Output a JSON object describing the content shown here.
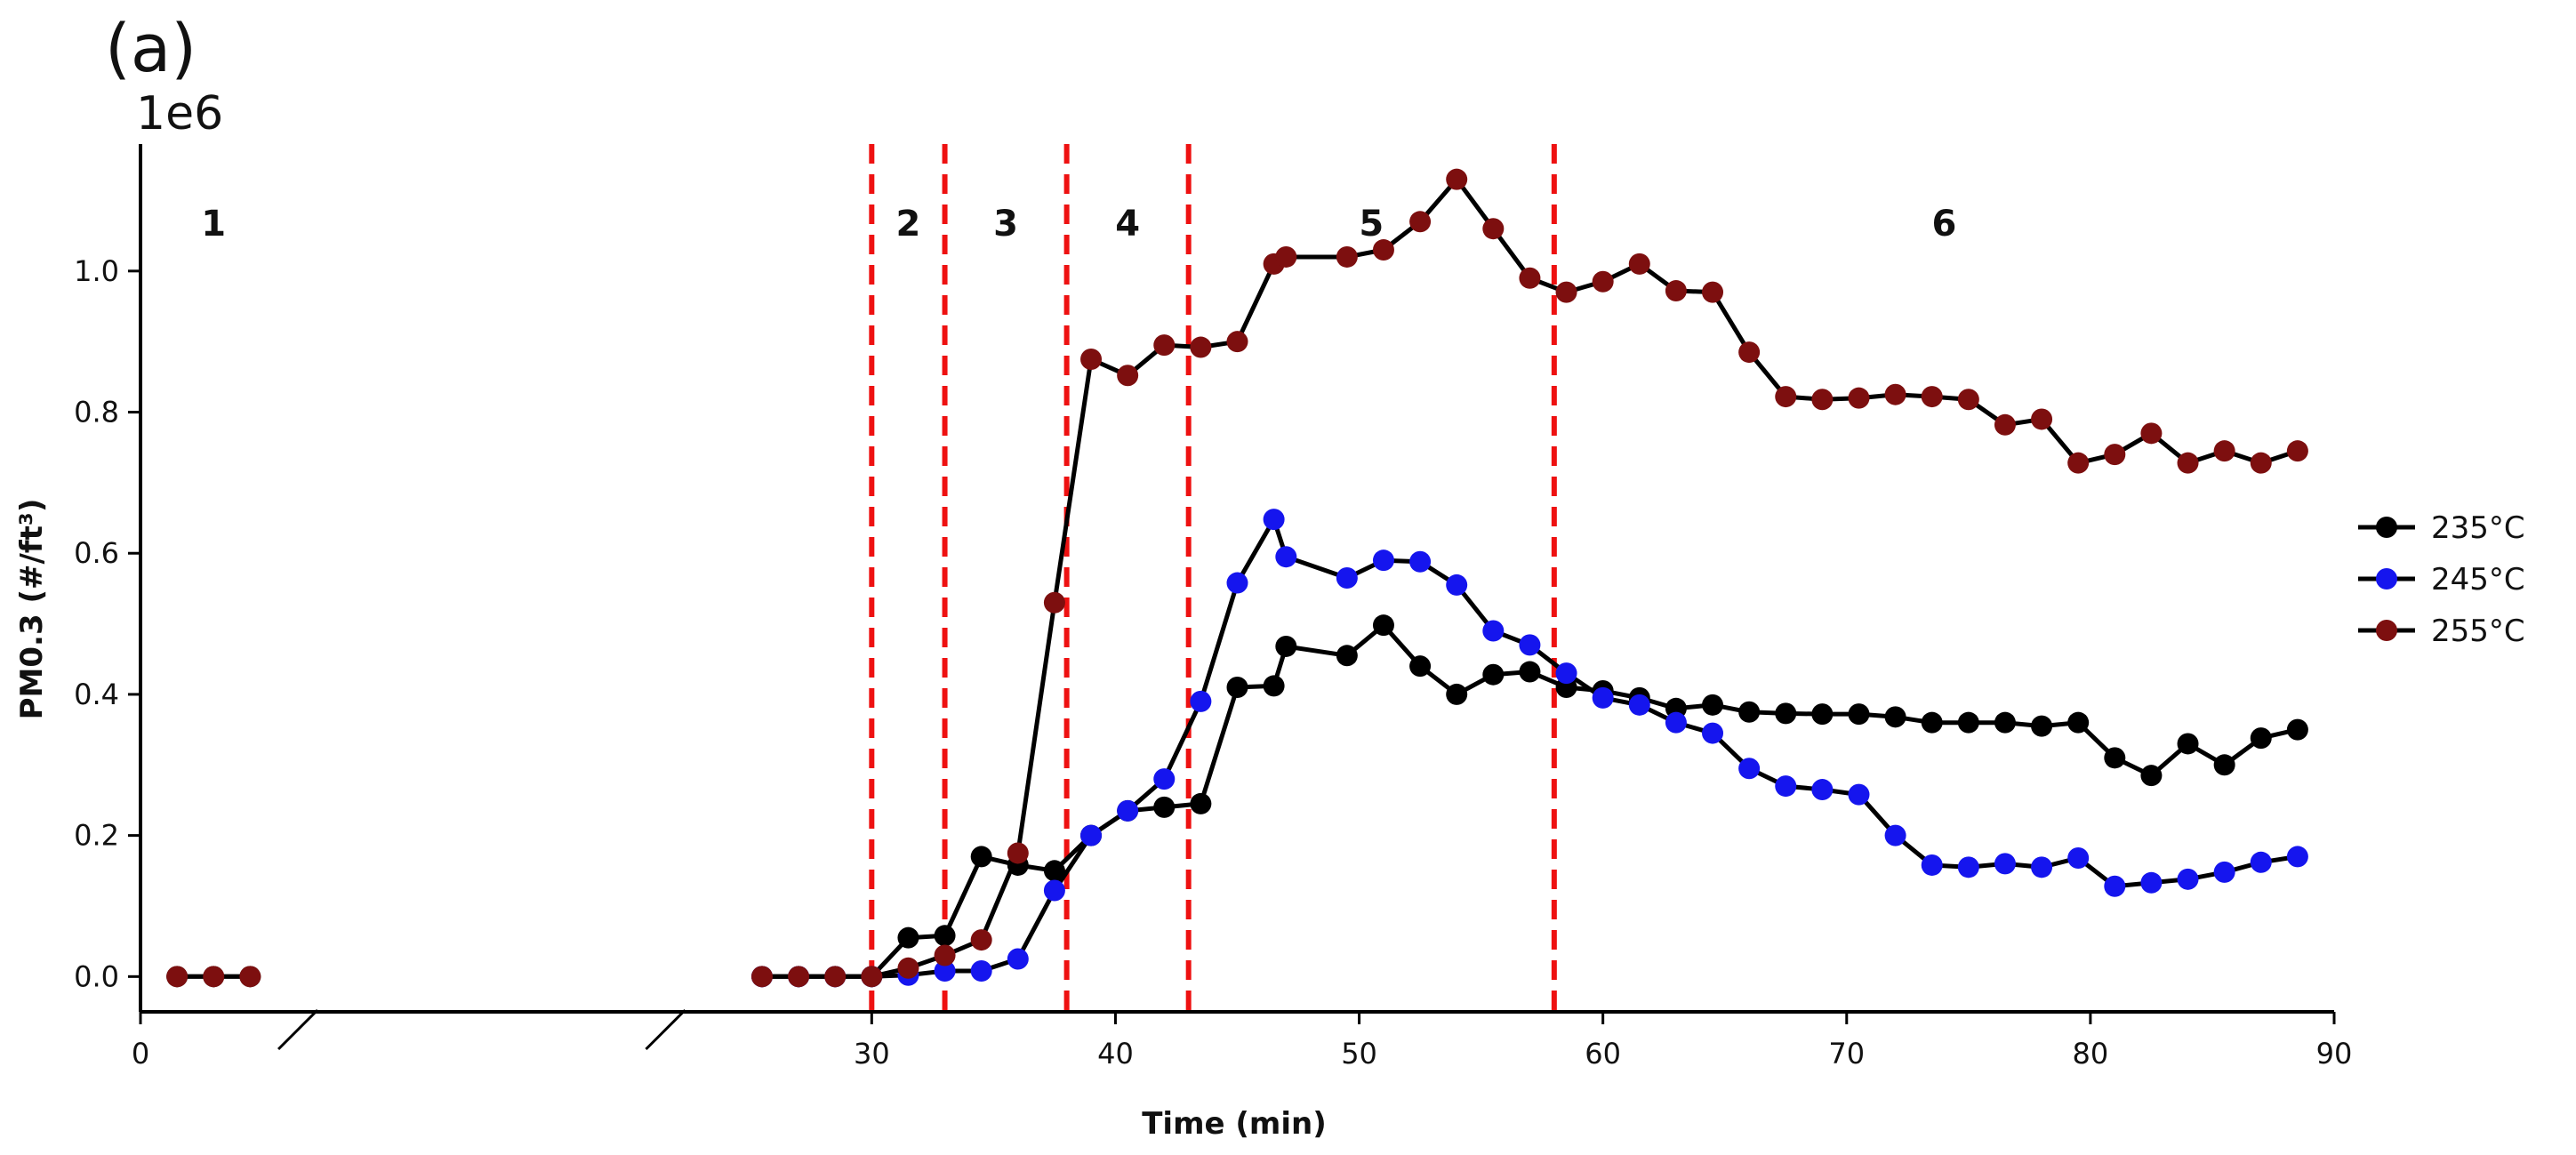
{
  "panel_label": "(a)",
  "chart_data": {
    "type": "line",
    "title": "",
    "xlabel": "Time (min)",
    "ylabel": "PM0.3 (#/ft³)",
    "y_scale_label": "1e6",
    "y_multiplier": 1000000,
    "xlim": [
      0,
      90
    ],
    "ylim": [
      -0.05,
      1.18
    ],
    "x_ticks": [
      0,
      30,
      40,
      50,
      60,
      70,
      80,
      90
    ],
    "x_tick_labels": [
      "0",
      "30",
      "40",
      "50",
      "60",
      "70",
      "80",
      "90"
    ],
    "y_ticks": [
      0.0,
      0.2,
      0.4,
      0.6,
      0.8,
      1.0
    ],
    "y_tick_labels": [
      "0.0",
      "0.2",
      "0.4",
      "0.6",
      "0.8",
      "1.0"
    ],
    "axis_break": {
      "from": 5,
      "to": 23
    },
    "grid": false,
    "legend_position": "right",
    "phase_lines": [
      30,
      33,
      38,
      43,
      58
    ],
    "phase_line_color": "#ee1111",
    "phases": [
      {
        "label": "1",
        "x": 3
      },
      {
        "label": "2",
        "x": 31.5
      },
      {
        "label": "3",
        "x": 35.5
      },
      {
        "label": "4",
        "x": 40.5
      },
      {
        "label": "5",
        "x": 50.5
      },
      {
        "label": "6",
        "x": 74
      }
    ],
    "series": [
      {
        "name": "235°C",
        "color": "#000000",
        "x": [
          1.5,
          3,
          4.5,
          25.5,
          27,
          28.5,
          30,
          31.5,
          33,
          34.5,
          36,
          37.5,
          39,
          40.5,
          42,
          43.5,
          45,
          46.5,
          47,
          49.5,
          51,
          52.5,
          54,
          55.5,
          57,
          58.5,
          60,
          61.5,
          63,
          64.5,
          66,
          67.5,
          69,
          70.5,
          72,
          73.5,
          75,
          76.5,
          78,
          79.5,
          81,
          82.5,
          84,
          85.5,
          87,
          88.5
        ],
        "y": [
          0,
          0,
          0,
          0,
          0,
          0,
          0,
          0.055,
          0.058,
          0.17,
          0.158,
          0.15,
          0.2,
          0.235,
          0.24,
          0.245,
          0.41,
          0.412,
          0.468,
          0.455,
          0.498,
          0.44,
          0.4,
          0.428,
          0.432,
          0.41,
          0.405,
          0.395,
          0.38,
          0.385,
          0.375,
          0.373,
          0.372,
          0.372,
          0.368,
          0.36,
          0.36,
          0.36,
          0.355,
          0.36,
          0.31,
          0.285,
          0.33,
          0.3,
          0.338,
          0.35
        ]
      },
      {
        "name": "245°C",
        "color": "#1515ee",
        "x": [
          25.5,
          27,
          28.5,
          30,
          31.5,
          33,
          34.5,
          36,
          37.5,
          39,
          40.5,
          42,
          43.5,
          45,
          46.5,
          47,
          49.5,
          51,
          52.5,
          54,
          55.5,
          57,
          58.5,
          60,
          61.5,
          63,
          64.5,
          66,
          67.5,
          69,
          70.5,
          72,
          73.5,
          75,
          76.5,
          78,
          79.5,
          81,
          82.5,
          84,
          85.5,
          87,
          88.5
        ],
        "y": [
          0,
          0,
          0,
          0,
          0.002,
          0.008,
          0.008,
          0.025,
          0.122,
          0.2,
          0.235,
          0.28,
          0.39,
          0.558,
          0.648,
          0.595,
          0.565,
          0.59,
          0.588,
          0.555,
          0.49,
          0.47,
          0.43,
          0.395,
          0.385,
          0.36,
          0.345,
          0.295,
          0.27,
          0.265,
          0.258,
          0.2,
          0.158,
          0.155,
          0.16,
          0.155,
          0.168,
          0.128,
          0.133,
          0.138,
          0.148,
          0.162,
          0.17
        ]
      },
      {
        "name": "255°C",
        "color": "#7d0f0f",
        "x": [
          1.5,
          3,
          4.5,
          25.5,
          27,
          28.5,
          30,
          31.5,
          33,
          34.5,
          36,
          37.5,
          39,
          40.5,
          42,
          43.5,
          45,
          46.5,
          47,
          49.5,
          51,
          52.5,
          54,
          55.5,
          57,
          58.5,
          60,
          61.5,
          63,
          64.5,
          66,
          67.5,
          69,
          70.5,
          72,
          73.5,
          75,
          76.5,
          78,
          79.5,
          81,
          82.5,
          84,
          85.5,
          87,
          88.5
        ],
        "y": [
          0,
          0,
          0,
          0,
          0,
          0,
          0,
          0.012,
          0.03,
          0.052,
          0.175,
          0.53,
          0.875,
          0.852,
          0.895,
          0.892,
          0.9,
          1.01,
          1.02,
          1.02,
          1.03,
          1.07,
          1.13,
          1.06,
          0.99,
          0.97,
          0.985,
          1.01,
          0.972,
          0.97,
          0.885,
          0.822,
          0.818,
          0.82,
          0.825,
          0.822,
          0.818,
          0.782,
          0.79,
          0.728,
          0.74,
          0.77,
          0.728,
          0.745,
          0.728,
          0.745
        ]
      }
    ]
  }
}
